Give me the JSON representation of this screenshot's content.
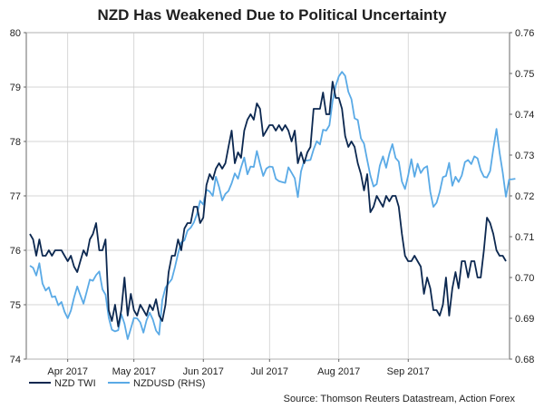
{
  "chart_data": {
    "type": "line",
    "title": "NZD Has Weakened Due to Political Uncertainty",
    "source": "Source: Thomson Reuters Datastream, Action Forex",
    "x_tick_labels": [
      "Apr 2017",
      "May 2017",
      "Jun 2017",
      "Jul 2017",
      "Aug 2017",
      "Sep 2017"
    ],
    "x_tick_index": [
      12,
      33,
      55,
      76,
      98,
      120
    ],
    "ylim_left": [
      74,
      80
    ],
    "ylim_right": [
      0.68,
      0.76
    ],
    "y_left_ticks": [
      74,
      75,
      76,
      77,
      78,
      79,
      80
    ],
    "y_right_ticks": [
      "0.68",
      "0.69",
      "0.70",
      "0.71",
      "0.72",
      "0.73",
      "0.74",
      "0.75",
      "0.76"
    ],
    "series": [
      {
        "name": "NZD TWI",
        "axis": "left",
        "color": "#0c2850",
        "values": [
          76.3,
          76.2,
          75.9,
          76.2,
          75.9,
          75.9,
          76.0,
          75.9,
          76.0,
          76.0,
          76.0,
          75.9,
          75.8,
          75.9,
          75.7,
          75.6,
          75.8,
          76.0,
          75.9,
          76.2,
          76.3,
          76.5,
          76.0,
          76.0,
          76.2,
          74.9,
          74.7,
          75.0,
          74.6,
          74.9,
          75.5,
          74.8,
          75.2,
          74.9,
          74.8,
          75.0,
          74.9,
          74.8,
          75.0,
          74.9,
          75.1,
          74.8,
          74.7,
          75.0,
          75.6,
          75.9,
          75.9,
          76.2,
          76.0,
          76.4,
          76.5,
          76.5,
          76.8,
          76.8,
          76.5,
          76.6,
          77.2,
          77.4,
          77.3,
          77.5,
          77.6,
          77.5,
          77.6,
          77.9,
          78.2,
          77.6,
          77.8,
          77.7,
          78.2,
          78.4,
          78.5,
          78.4,
          78.7,
          78.6,
          78.1,
          78.2,
          78.3,
          78.3,
          78.2,
          78.3,
          78.2,
          78.3,
          78.2,
          78.0,
          78.2,
          77.6,
          77.8,
          77.6,
          77.8,
          77.9,
          78.6,
          78.6,
          78.6,
          78.9,
          78.5,
          78.5,
          79.1,
          78.8,
          78.8,
          78.6,
          78.1,
          77.9,
          78.0,
          77.9,
          77.6,
          77.4,
          77.1,
          77.4,
          76.7,
          76.8,
          77.0,
          76.9,
          76.8,
          77.0,
          76.9,
          77.0,
          77.0,
          76.8,
          76.3,
          75.9,
          75.8,
          75.8,
          75.9,
          75.8,
          75.7,
          75.2,
          75.5,
          75.3,
          74.9,
          74.9,
          74.8,
          75.0,
          75.5,
          74.8,
          75.3,
          75.6,
          75.3,
          75.8,
          75.8,
          75.5,
          75.8,
          75.8,
          75.5,
          75.5,
          76.0,
          76.6,
          76.5,
          76.3,
          76.0,
          75.9,
          75.9,
          75.8
        ]
      },
      {
        "name": "NZDUSD (RHS)",
        "axis": "right",
        "color": "#5aaae6",
        "values": [
          0.7029,
          0.7024,
          0.7005,
          0.7035,
          0.6985,
          0.6968,
          0.6976,
          0.6952,
          0.6954,
          0.6932,
          0.694,
          0.6916,
          0.69,
          0.6919,
          0.6951,
          0.6978,
          0.6957,
          0.6936,
          0.6965,
          0.6995,
          0.6992,
          0.7006,
          0.7015,
          0.6971,
          0.6958,
          0.6902,
          0.6872,
          0.6868,
          0.6871,
          0.691,
          0.6887,
          0.6849,
          0.6875,
          0.6901,
          0.69,
          0.689,
          0.6865,
          0.6895,
          0.6914,
          0.6897,
          0.687,
          0.686,
          0.6945,
          0.6975,
          0.6986,
          0.6996,
          0.7025,
          0.7059,
          0.7086,
          0.7091,
          0.7115,
          0.7122,
          0.7135,
          0.7156,
          0.7188,
          0.7179,
          0.7215,
          0.7211,
          0.72,
          0.7247,
          0.7222,
          0.7189,
          0.7205,
          0.7212,
          0.7231,
          0.7255,
          0.7242,
          0.727,
          0.7294,
          0.7253,
          0.7272,
          0.7271,
          0.731,
          0.7278,
          0.7249,
          0.7267,
          0.7272,
          0.7271,
          0.7242,
          0.7236,
          0.7234,
          0.7232,
          0.727,
          0.7257,
          0.7243,
          0.7197,
          0.726,
          0.7286,
          0.7287,
          0.7288,
          0.7314,
          0.7334,
          0.7326,
          0.7362,
          0.736,
          0.7373,
          0.7432,
          0.747,
          0.7493,
          0.7504,
          0.7494,
          0.7455,
          0.7437,
          0.739,
          0.7386,
          0.7341,
          0.7328,
          0.7288,
          0.725,
          0.7223,
          0.7229,
          0.7274,
          0.7297,
          0.7269,
          0.7303,
          0.7327,
          0.7293,
          0.7284,
          0.7235,
          0.7217,
          0.725,
          0.729,
          0.7247,
          0.7279,
          0.7256,
          0.7268,
          0.7273,
          0.721,
          0.7173,
          0.7183,
          0.721,
          0.7246,
          0.7249,
          0.7281,
          0.7225,
          0.7247,
          0.7234,
          0.725,
          0.7283,
          0.7288,
          0.7278,
          0.7297,
          0.7292,
          0.7263,
          0.7247,
          0.7245,
          0.7261,
          0.7315,
          0.7364,
          0.7306,
          0.7257,
          0.7198,
          0.724,
          0.7241,
          0.7242
        ]
      }
    ]
  }
}
